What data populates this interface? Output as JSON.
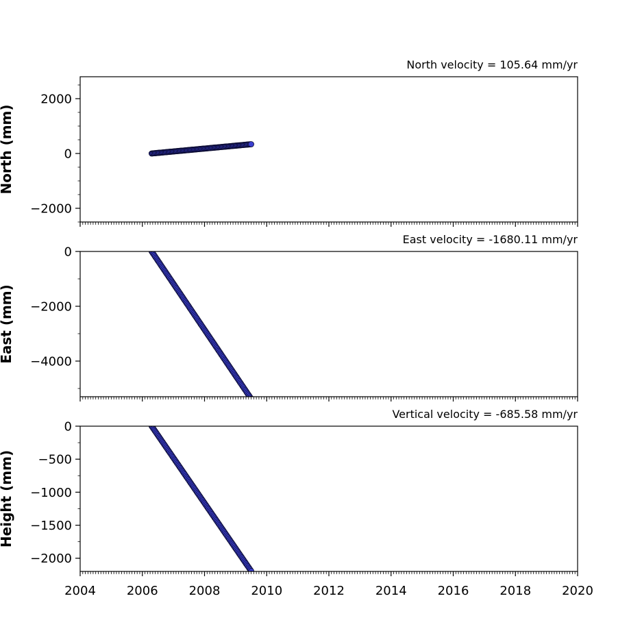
{
  "colors": {
    "marker_fill": "#3b3fd0",
    "marker_edge": "#0a0a2e",
    "axes": "#000000"
  },
  "chart_data": [
    {
      "type": "scatter",
      "title": "North velocity = 105.64 mm/yr",
      "ylabel": "North (mm)",
      "xlabel": "",
      "xlim": [
        2004,
        2020
      ],
      "ylim": [
        -2500,
        2800
      ],
      "xticks": [
        "2004",
        "2006",
        "2008",
        "2010",
        "2012",
        "2014",
        "2016",
        "2018",
        "2020"
      ],
      "yticks": [
        -2000,
        0,
        2000
      ],
      "grid": false,
      "series": [
        {
          "x_start": 2006.3,
          "x_end": 2009.5,
          "y_start": 0,
          "y_end": 338,
          "x_step": 0.0274
        }
      ]
    },
    {
      "type": "scatter",
      "title": "East velocity = -1680.11 mm/yr",
      "ylabel": "East (mm)",
      "xlabel": "",
      "xlim": [
        2004,
        2020
      ],
      "ylim": [
        -5300,
        0
      ],
      "xticks": [
        "2004",
        "2006",
        "2008",
        "2010",
        "2012",
        "2014",
        "2016",
        "2018",
        "2020"
      ],
      "yticks": [
        -4000,
        -2000,
        0
      ],
      "grid": false,
      "series": [
        {
          "x_start": 2006.3,
          "x_end": 2009.5,
          "y_start": 0,
          "y_end": -5376,
          "x_step": 0.0274
        }
      ]
    },
    {
      "type": "scatter",
      "title": "Vertical velocity = -685.58 mm/yr",
      "ylabel": "Height (mm)",
      "xlabel": "",
      "xlim": [
        2004,
        2020
      ],
      "ylim": [
        -2200,
        0
      ],
      "xticks": [
        "2004",
        "2006",
        "2008",
        "2010",
        "2012",
        "2014",
        "2016",
        "2018",
        "2020"
      ],
      "yticks": [
        -2000,
        -1500,
        -1000,
        -500,
        0
      ],
      "grid": false,
      "series": [
        {
          "x_start": 2006.3,
          "x_end": 2009.5,
          "y_start": 0,
          "y_end": -2194,
          "x_step": 0.0274
        }
      ]
    }
  ]
}
